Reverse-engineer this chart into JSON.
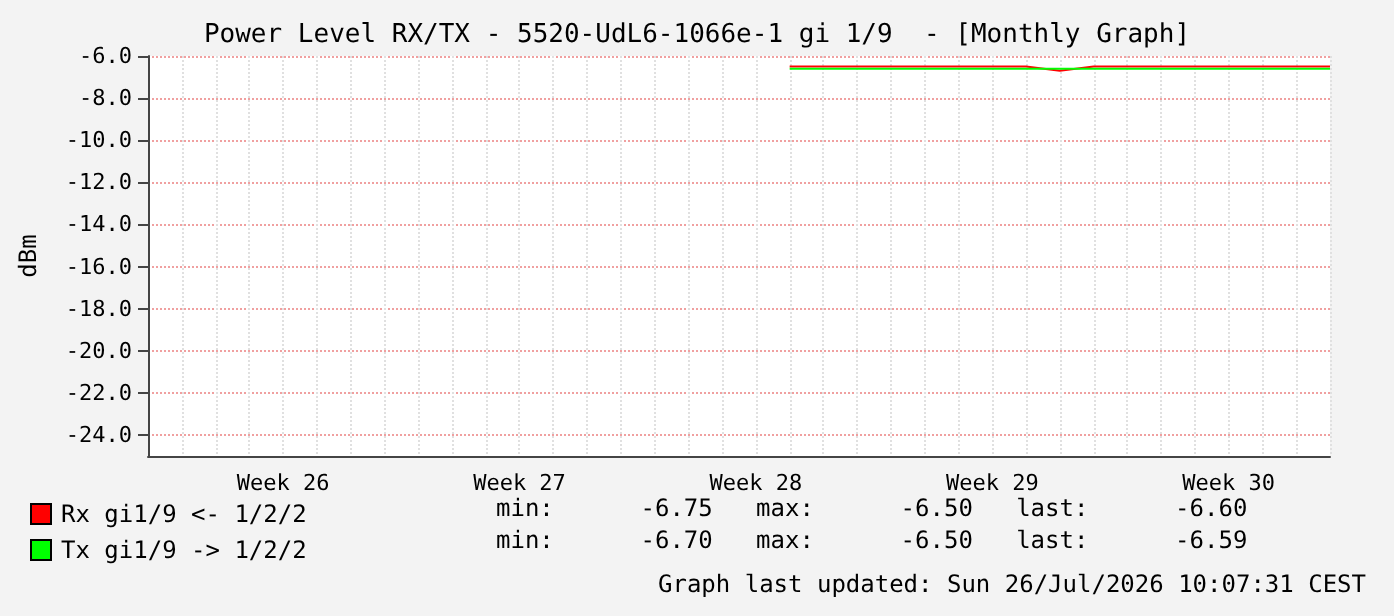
{
  "chart_data": {
    "type": "line",
    "title": "Power Level RX/TX - 5520-UdL6-1066e-1 gi 1/9  - [Monthly Graph]",
    "ylabel": "dBm",
    "categories": [
      null,
      null,
      null,
      null,
      "Week 26",
      null,
      null,
      null,
      null,
      null,
      null,
      "Week 27",
      null,
      null,
      null,
      null,
      null,
      null,
      "Week 28",
      null,
      null,
      null,
      null,
      null,
      null,
      "Week 29",
      null,
      null,
      null,
      null,
      null,
      null,
      "Week 30",
      null,
      null,
      null
    ],
    "ylim": [
      -25,
      -6
    ],
    "yticks": [
      {
        "value": -6,
        "label": "-6.0"
      },
      {
        "value": -8,
        "label": "-8.0"
      },
      {
        "value": -10,
        "label": "-10.0"
      },
      {
        "value": -12,
        "label": "-12.0"
      },
      {
        "value": -14,
        "label": "-14.0"
      },
      {
        "value": -16,
        "label": "-16.0"
      },
      {
        "value": -18,
        "label": "-18.0"
      },
      {
        "value": -20,
        "label": "-20.0"
      },
      {
        "value": -22,
        "label": "-22.0"
      },
      {
        "value": -24,
        "label": "-24.0"
      }
    ],
    "grid": true,
    "legend": "bottom left",
    "marker": "none",
    "line_style": "solid",
    "series": [
      {
        "name": "Rx gi1/9 <- 1/2/2",
        "color": "#ff0000",
        "values": [
          null,
          null,
          null,
          null,
          null,
          null,
          null,
          null,
          null,
          null,
          null,
          null,
          null,
          null,
          null,
          null,
          null,
          null,
          null,
          -6.5,
          -6.5,
          -6.5,
          -6.5,
          -6.5,
          -6.5,
          -6.5,
          -6.5,
          -6.7,
          -6.5,
          -6.5,
          -6.5,
          -6.5,
          -6.5,
          -6.5,
          -6.5,
          -6.5
        ]
      },
      {
        "name": "Tx gi1/9 -> 1/2/2",
        "color": "#00ff00",
        "values": [
          null,
          null,
          null,
          null,
          null,
          null,
          null,
          null,
          null,
          null,
          null,
          null,
          null,
          null,
          null,
          null,
          null,
          null,
          null,
          -6.6,
          -6.6,
          -6.6,
          -6.6,
          -6.6,
          -6.6,
          -6.6,
          -6.6,
          -6.6,
          -6.6,
          -6.6,
          -6.6,
          -6.6,
          -6.6,
          -6.6,
          -6.6,
          -6.6
        ]
      }
    ],
    "annotations": [
      "min:      -6.75   max:      -6.50   last:      -6.60",
      "min:      -6.70   max:      -6.50   last:      -6.59",
      "Graph last updated: Sun 26/Jul/2026 10:07:31 CEST"
    ]
  }
}
